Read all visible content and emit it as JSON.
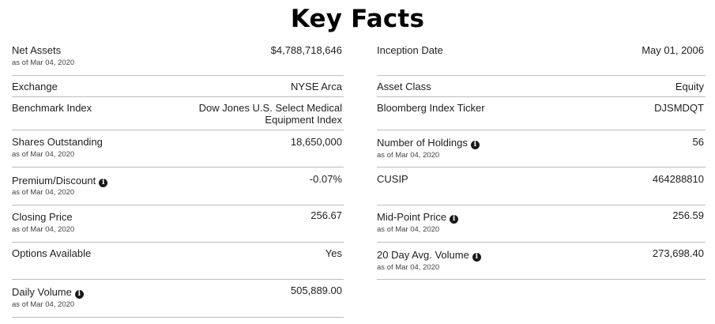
{
  "title": "Key Facts",
  "left": [
    {
      "label": "Net Assets",
      "asof": "as of Mar 04, 2020",
      "value": "$4,788,718,646"
    },
    {
      "label": "Exchange",
      "value": "NYSE Arca"
    },
    {
      "label": "Benchmark Index",
      "value": "Dow Jones U.S. Select Medical Equipment Index"
    },
    {
      "label": "Shares Outstanding",
      "asof": "as of Mar 04, 2020",
      "value": "18,650,000"
    },
    {
      "label": "Premium/Discount",
      "info": true,
      "asof": "as of Mar 04, 2020",
      "value": "-0.07%"
    },
    {
      "label": "Closing Price",
      "asof": "as of Mar 04, 2020",
      "value": "256.67"
    },
    {
      "label": "Options Available",
      "value": "Yes"
    },
    {
      "label": "Daily Volume",
      "info": true,
      "asof": "as of Mar 04, 2020",
      "value": "505,889.00"
    }
  ],
  "right": [
    {
      "label": "Inception Date",
      "value": "May 01, 2006"
    },
    {
      "label": "Asset Class",
      "value": "Equity"
    },
    {
      "label": "Bloomberg Index Ticker",
      "value": "DJSMDQT"
    },
    {
      "label": "Number of Holdings",
      "info": true,
      "asof": "as of Mar 04, 2020",
      "value": "56"
    },
    {
      "label": "CUSIP",
      "value": "464288810"
    },
    {
      "label": "Mid-Point Price",
      "info": true,
      "asof": "as of Mar 04, 2020",
      "value": "256.59"
    },
    {
      "label": "20 Day Avg. Volume",
      "info": true,
      "asof": "as of Mar 04, 2020",
      "value": "273,698.40"
    }
  ],
  "info_icon_glyph": "i"
}
